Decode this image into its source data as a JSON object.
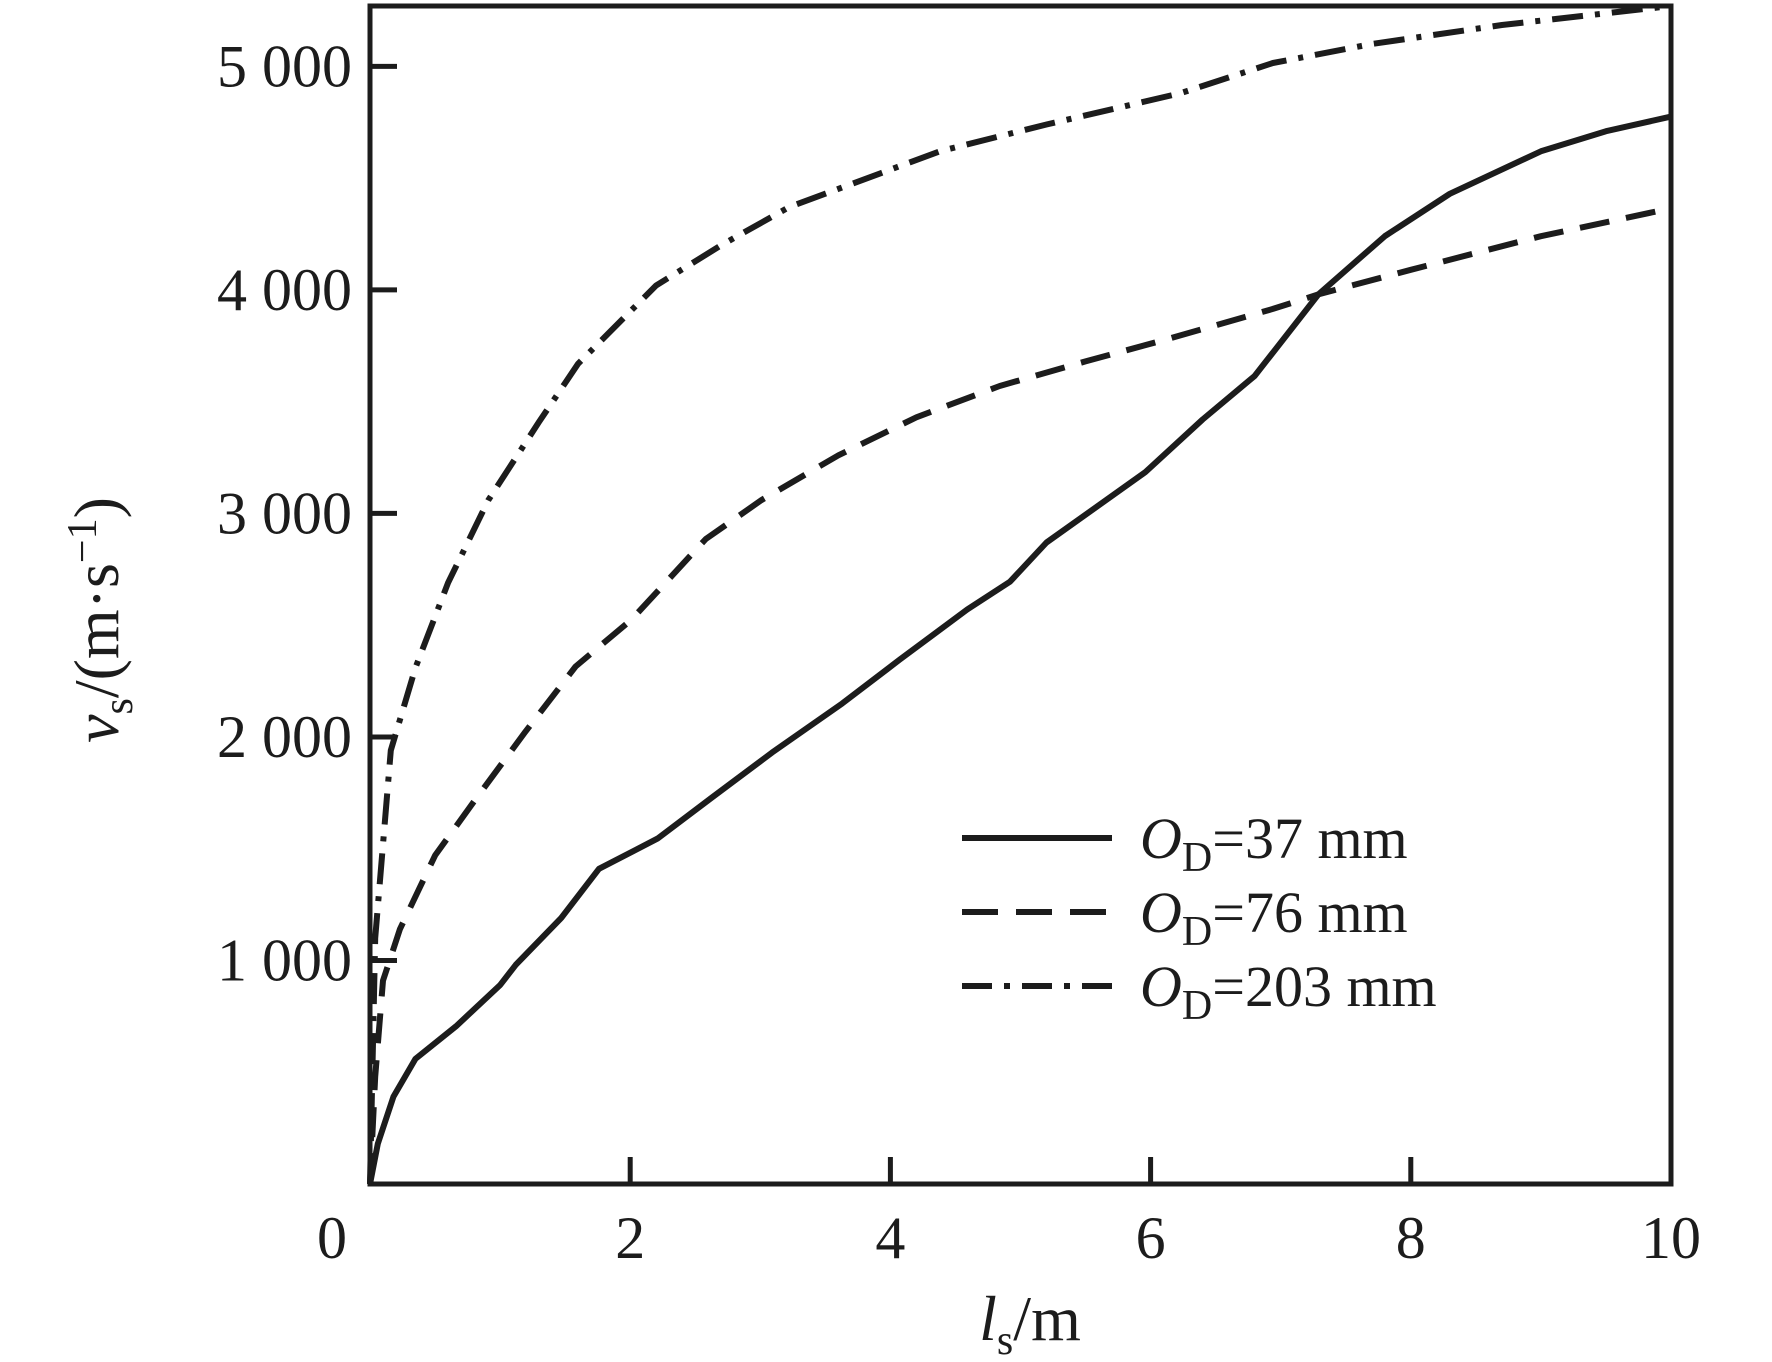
{
  "page": {
    "background": "#ffffff",
    "ink": "#1c1c1c"
  },
  "chart_data": {
    "type": "line",
    "title": "",
    "xlabel_parts": {
      "symbol": "l",
      "sub": "s",
      "rest": "/m"
    },
    "ylabel_parts": {
      "symbol": "v",
      "sub": "s",
      "rest": "/(m·s",
      "sup": "−1",
      "tail": ")"
    },
    "xlim": [
      0,
      10
    ],
    "ylim": [
      0,
      5270
    ],
    "grid": false,
    "box": true,
    "tick_direction": "in",
    "legend_position": "inside-lower-right",
    "x_ticks": {
      "values": [
        0,
        2,
        4,
        6,
        8,
        10
      ],
      "labels": [
        "0",
        "2",
        "4",
        "6",
        "8",
        "10"
      ]
    },
    "y_ticks": {
      "values": [
        1000,
        2000,
        3000,
        4000,
        5000
      ],
      "labels": [
        "1 000",
        "2 000",
        "3 000",
        "4 000",
        "5 000"
      ]
    },
    "series": [
      {
        "id": "od37",
        "line_style": "solid",
        "color": "#1c1c1c",
        "label_parts": {
          "symbol": "O",
          "sub": "D",
          "rest": "=37 mm"
        },
        "points": [
          [
            0,
            0
          ],
          [
            0.06,
            180
          ],
          [
            0.18,
            390
          ],
          [
            0.35,
            560
          ],
          [
            0.66,
            705
          ],
          [
            1.0,
            890
          ],
          [
            1.12,
            980
          ],
          [
            1.47,
            1190
          ],
          [
            1.76,
            1410
          ],
          [
            2.21,
            1545
          ],
          [
            2.63,
            1730
          ],
          [
            3.09,
            1930
          ],
          [
            3.63,
            2150
          ],
          [
            4.07,
            2345
          ],
          [
            4.59,
            2570
          ],
          [
            4.92,
            2695
          ],
          [
            5.2,
            2870
          ],
          [
            5.96,
            3185
          ],
          [
            6.4,
            3420
          ],
          [
            6.8,
            3615
          ],
          [
            7.29,
            3980
          ],
          [
            7.8,
            4240
          ],
          [
            8.3,
            4430
          ],
          [
            9.0,
            4620
          ],
          [
            9.5,
            4710
          ],
          [
            10,
            4775
          ]
        ]
      },
      {
        "id": "od76",
        "line_style": "dashed",
        "color": "#1c1c1c",
        "label_parts": {
          "symbol": "O",
          "sub": "D",
          "rest": "=76 mm"
        },
        "points": [
          [
            0,
            0
          ],
          [
            0.04,
            480
          ],
          [
            0.1,
            910
          ],
          [
            0.23,
            1140
          ],
          [
            0.5,
            1470
          ],
          [
            0.81,
            1720
          ],
          [
            1.19,
            2020
          ],
          [
            1.58,
            2315
          ],
          [
            2.01,
            2525
          ],
          [
            2.58,
            2885
          ],
          [
            3.01,
            3060
          ],
          [
            3.6,
            3260
          ],
          [
            4.2,
            3430
          ],
          [
            4.84,
            3570
          ],
          [
            5.5,
            3680
          ],
          [
            6.13,
            3780
          ],
          [
            6.94,
            3915
          ],
          [
            7.29,
            3980
          ],
          [
            8,
            4090
          ],
          [
            9,
            4240
          ],
          [
            10,
            4365
          ]
        ]
      },
      {
        "id": "od203",
        "line_style": "dash-dot",
        "color": "#1c1c1c",
        "label_parts": {
          "symbol": "O",
          "sub": "D",
          "rest": "=203 mm"
        },
        "points": [
          [
            0,
            0
          ],
          [
            0.04,
            1100
          ],
          [
            0.16,
            1940
          ],
          [
            0.35,
            2310
          ],
          [
            0.6,
            2690
          ],
          [
            0.91,
            3060
          ],
          [
            1.3,
            3410
          ],
          [
            1.6,
            3670
          ],
          [
            2.2,
            4020
          ],
          [
            2.7,
            4200
          ],
          [
            3.22,
            4370
          ],
          [
            4.38,
            4620
          ],
          [
            5.2,
            4740
          ],
          [
            6.23,
            4880
          ],
          [
            6.94,
            5015
          ],
          [
            7.7,
            5100
          ],
          [
            8.7,
            5185
          ],
          [
            10,
            5270
          ]
        ]
      }
    ]
  }
}
